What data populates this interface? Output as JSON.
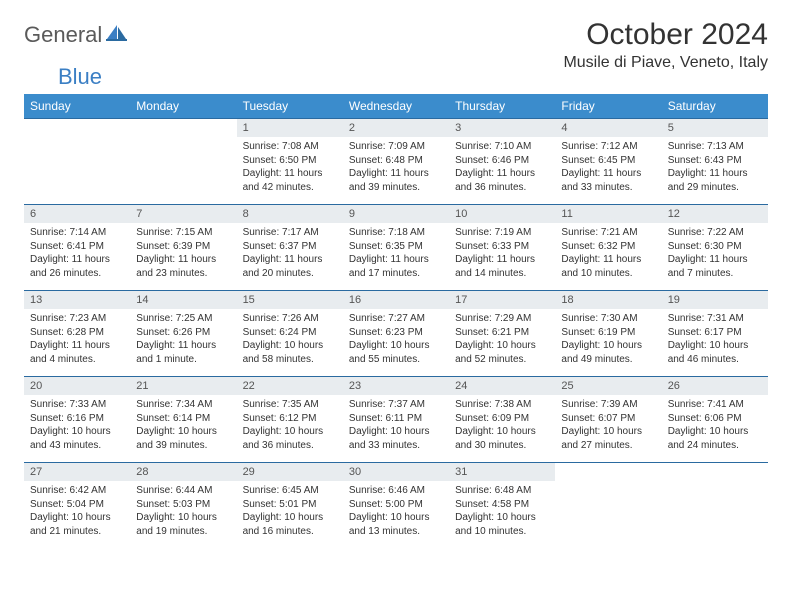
{
  "brand": {
    "part1": "General",
    "part2": "Blue"
  },
  "title": "October 2024",
  "location": "Musile di Piave, Veneto, Italy",
  "colors": {
    "header_bg": "#3b8ccc",
    "header_text": "#ffffff",
    "row_border": "#2a6aa0",
    "daynum_bg": "#e8ecef",
    "brand_gray": "#5a5a5a",
    "brand_blue": "#3b7fc4",
    "body_text": "#333333",
    "page_bg": "#ffffff"
  },
  "typography": {
    "title_fontsize": 30,
    "location_fontsize": 16,
    "header_fontsize": 12,
    "daynum_fontsize": 11,
    "body_fontsize": 10
  },
  "weekdays": [
    "Sunday",
    "Monday",
    "Tuesday",
    "Wednesday",
    "Thursday",
    "Friday",
    "Saturday"
  ],
  "weeks": [
    [
      {
        "empty": true
      },
      {
        "empty": true
      },
      {
        "day": "1",
        "sunrise": "Sunrise: 7:08 AM",
        "sunset": "Sunset: 6:50 PM",
        "daylight": "Daylight: 11 hours and 42 minutes."
      },
      {
        "day": "2",
        "sunrise": "Sunrise: 7:09 AM",
        "sunset": "Sunset: 6:48 PM",
        "daylight": "Daylight: 11 hours and 39 minutes."
      },
      {
        "day": "3",
        "sunrise": "Sunrise: 7:10 AM",
        "sunset": "Sunset: 6:46 PM",
        "daylight": "Daylight: 11 hours and 36 minutes."
      },
      {
        "day": "4",
        "sunrise": "Sunrise: 7:12 AM",
        "sunset": "Sunset: 6:45 PM",
        "daylight": "Daylight: 11 hours and 33 minutes."
      },
      {
        "day": "5",
        "sunrise": "Sunrise: 7:13 AM",
        "sunset": "Sunset: 6:43 PM",
        "daylight": "Daylight: 11 hours and 29 minutes."
      }
    ],
    [
      {
        "day": "6",
        "sunrise": "Sunrise: 7:14 AM",
        "sunset": "Sunset: 6:41 PM",
        "daylight": "Daylight: 11 hours and 26 minutes."
      },
      {
        "day": "7",
        "sunrise": "Sunrise: 7:15 AM",
        "sunset": "Sunset: 6:39 PM",
        "daylight": "Daylight: 11 hours and 23 minutes."
      },
      {
        "day": "8",
        "sunrise": "Sunrise: 7:17 AM",
        "sunset": "Sunset: 6:37 PM",
        "daylight": "Daylight: 11 hours and 20 minutes."
      },
      {
        "day": "9",
        "sunrise": "Sunrise: 7:18 AM",
        "sunset": "Sunset: 6:35 PM",
        "daylight": "Daylight: 11 hours and 17 minutes."
      },
      {
        "day": "10",
        "sunrise": "Sunrise: 7:19 AM",
        "sunset": "Sunset: 6:33 PM",
        "daylight": "Daylight: 11 hours and 14 minutes."
      },
      {
        "day": "11",
        "sunrise": "Sunrise: 7:21 AM",
        "sunset": "Sunset: 6:32 PM",
        "daylight": "Daylight: 11 hours and 10 minutes."
      },
      {
        "day": "12",
        "sunrise": "Sunrise: 7:22 AM",
        "sunset": "Sunset: 6:30 PM",
        "daylight": "Daylight: 11 hours and 7 minutes."
      }
    ],
    [
      {
        "day": "13",
        "sunrise": "Sunrise: 7:23 AM",
        "sunset": "Sunset: 6:28 PM",
        "daylight": "Daylight: 11 hours and 4 minutes."
      },
      {
        "day": "14",
        "sunrise": "Sunrise: 7:25 AM",
        "sunset": "Sunset: 6:26 PM",
        "daylight": "Daylight: 11 hours and 1 minute."
      },
      {
        "day": "15",
        "sunrise": "Sunrise: 7:26 AM",
        "sunset": "Sunset: 6:24 PM",
        "daylight": "Daylight: 10 hours and 58 minutes."
      },
      {
        "day": "16",
        "sunrise": "Sunrise: 7:27 AM",
        "sunset": "Sunset: 6:23 PM",
        "daylight": "Daylight: 10 hours and 55 minutes."
      },
      {
        "day": "17",
        "sunrise": "Sunrise: 7:29 AM",
        "sunset": "Sunset: 6:21 PM",
        "daylight": "Daylight: 10 hours and 52 minutes."
      },
      {
        "day": "18",
        "sunrise": "Sunrise: 7:30 AM",
        "sunset": "Sunset: 6:19 PM",
        "daylight": "Daylight: 10 hours and 49 minutes."
      },
      {
        "day": "19",
        "sunrise": "Sunrise: 7:31 AM",
        "sunset": "Sunset: 6:17 PM",
        "daylight": "Daylight: 10 hours and 46 minutes."
      }
    ],
    [
      {
        "day": "20",
        "sunrise": "Sunrise: 7:33 AM",
        "sunset": "Sunset: 6:16 PM",
        "daylight": "Daylight: 10 hours and 43 minutes."
      },
      {
        "day": "21",
        "sunrise": "Sunrise: 7:34 AM",
        "sunset": "Sunset: 6:14 PM",
        "daylight": "Daylight: 10 hours and 39 minutes."
      },
      {
        "day": "22",
        "sunrise": "Sunrise: 7:35 AM",
        "sunset": "Sunset: 6:12 PM",
        "daylight": "Daylight: 10 hours and 36 minutes."
      },
      {
        "day": "23",
        "sunrise": "Sunrise: 7:37 AM",
        "sunset": "Sunset: 6:11 PM",
        "daylight": "Daylight: 10 hours and 33 minutes."
      },
      {
        "day": "24",
        "sunrise": "Sunrise: 7:38 AM",
        "sunset": "Sunset: 6:09 PM",
        "daylight": "Daylight: 10 hours and 30 minutes."
      },
      {
        "day": "25",
        "sunrise": "Sunrise: 7:39 AM",
        "sunset": "Sunset: 6:07 PM",
        "daylight": "Daylight: 10 hours and 27 minutes."
      },
      {
        "day": "26",
        "sunrise": "Sunrise: 7:41 AM",
        "sunset": "Sunset: 6:06 PM",
        "daylight": "Daylight: 10 hours and 24 minutes."
      }
    ],
    [
      {
        "day": "27",
        "sunrise": "Sunrise: 6:42 AM",
        "sunset": "Sunset: 5:04 PM",
        "daylight": "Daylight: 10 hours and 21 minutes."
      },
      {
        "day": "28",
        "sunrise": "Sunrise: 6:44 AM",
        "sunset": "Sunset: 5:03 PM",
        "daylight": "Daylight: 10 hours and 19 minutes."
      },
      {
        "day": "29",
        "sunrise": "Sunrise: 6:45 AM",
        "sunset": "Sunset: 5:01 PM",
        "daylight": "Daylight: 10 hours and 16 minutes."
      },
      {
        "day": "30",
        "sunrise": "Sunrise: 6:46 AM",
        "sunset": "Sunset: 5:00 PM",
        "daylight": "Daylight: 10 hours and 13 minutes."
      },
      {
        "day": "31",
        "sunrise": "Sunrise: 6:48 AM",
        "sunset": "Sunset: 4:58 PM",
        "daylight": "Daylight: 10 hours and 10 minutes."
      },
      {
        "empty": true
      },
      {
        "empty": true
      }
    ]
  ]
}
